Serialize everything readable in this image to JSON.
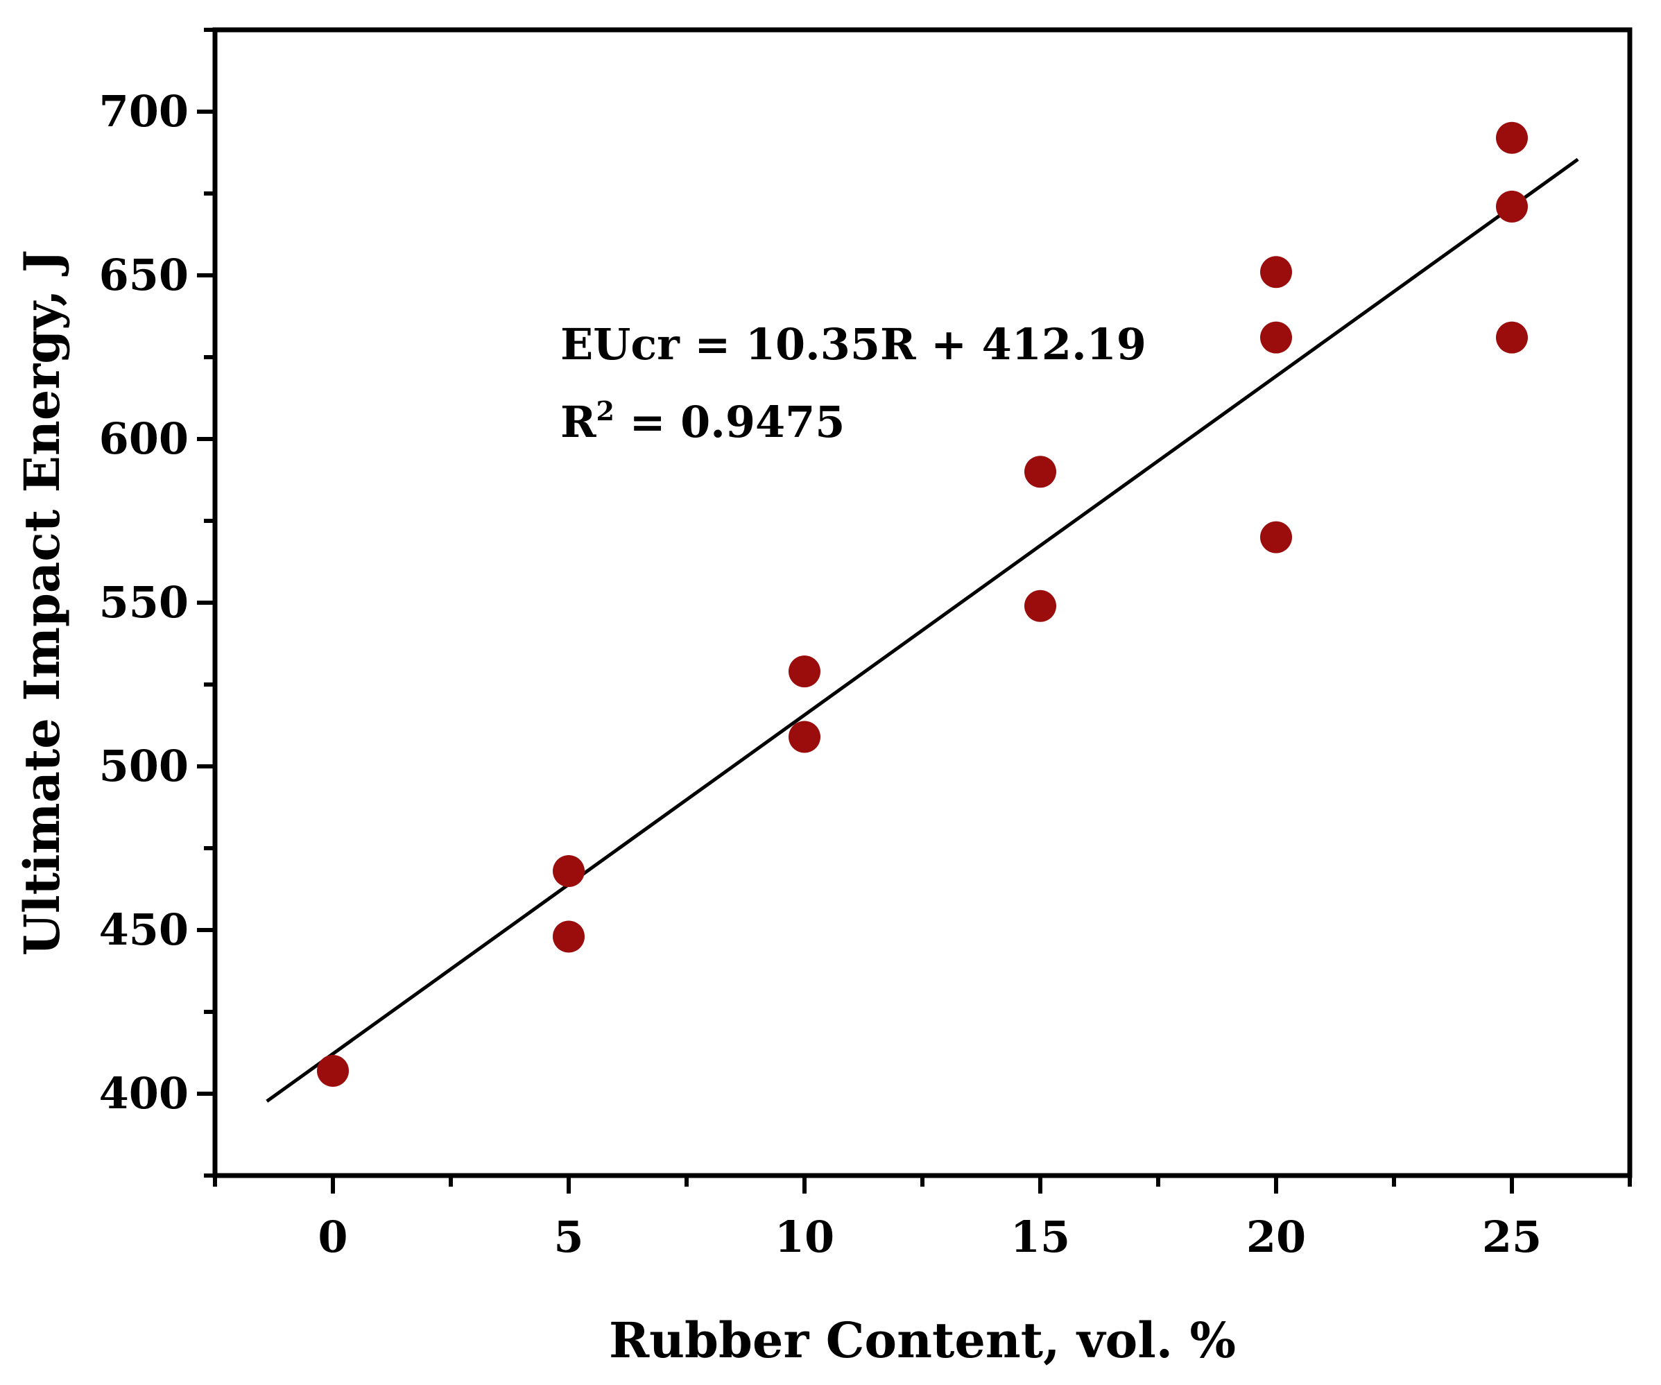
{
  "chart_data": {
    "type": "scatter",
    "title": "",
    "xlabel": "Rubber Content, vol. %",
    "ylabel": "Ultimate Impact Energy, J",
    "xlim": [
      -2.5,
      27.5
    ],
    "ylim": [
      375,
      725
    ],
    "x_ticks": [
      0,
      5,
      10,
      15,
      20,
      25
    ],
    "x_minor_ticks": [
      -2.5,
      2.5,
      7.5,
      12.5,
      17.5,
      22.5,
      27.5
    ],
    "y_ticks": [
      400,
      450,
      500,
      550,
      600,
      650,
      700
    ],
    "y_minor_ticks": [
      375,
      425,
      475,
      525,
      575,
      625,
      675,
      725
    ],
    "grid": false,
    "legend": "none",
    "point_color": "#9b0d0d",
    "line_color": "#000000",
    "series": [
      {
        "points": [
          {
            "x": 0,
            "y": 407
          },
          {
            "x": 5,
            "y": 468
          },
          {
            "x": 5,
            "y": 448
          },
          {
            "x": 10,
            "y": 529
          },
          {
            "x": 10,
            "y": 509
          },
          {
            "x": 15,
            "y": 590
          },
          {
            "x": 15,
            "y": 549
          },
          {
            "x": 20,
            "y": 651
          },
          {
            "x": 20,
            "y": 631
          },
          {
            "x": 20,
            "y": 570
          },
          {
            "x": 25,
            "y": 692
          },
          {
            "x": 25,
            "y": 671
          },
          {
            "x": 25,
            "y": 631
          }
        ]
      }
    ],
    "fit_line": {
      "x_start": -1.4,
      "x_end": 26.4,
      "slope": 10.35,
      "intercept": 412.19
    },
    "annotations": {
      "equation": "EUcr = 10.35R + 412.19",
      "r2_prefix": "R",
      "r2_sup": "2",
      "r2_value": " = 0.9475"
    }
  }
}
